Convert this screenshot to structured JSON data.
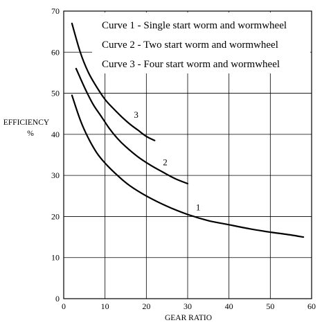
{
  "chart_data": {
    "type": "line",
    "xlabel": "GEAR RATIO",
    "ylabel_line1": "EFFICIENCY",
    "ylabel_line2": "%",
    "xlim": [
      0,
      60
    ],
    "ylim": [
      0,
      70
    ],
    "xticks": [
      0,
      10,
      20,
      30,
      40,
      50,
      60
    ],
    "yticks": [
      0,
      10,
      20,
      30,
      40,
      50,
      60,
      70
    ],
    "grid": true,
    "legend_position": "top-right",
    "legend": [
      "Curve 1 - Single start worm and wormwheel",
      "Curve 2 - Two start worm and wormwheel",
      "Curve 3 - Four start worm and wormwheel"
    ],
    "series": [
      {
        "name": "1",
        "x": [
          2,
          4,
          6,
          8,
          10,
          13,
          16,
          20,
          25,
          30,
          35,
          40,
          45,
          50,
          55,
          58
        ],
        "y": [
          49.5,
          43.5,
          39,
          35.5,
          33,
          30,
          27.5,
          25,
          22.5,
          20.5,
          19,
          18,
          17,
          16.2,
          15.5,
          15
        ]
      },
      {
        "name": "2",
        "x": [
          3,
          5,
          7,
          9,
          11,
          13,
          15,
          18,
          21,
          24,
          27,
          30
        ],
        "y": [
          56,
          51.5,
          47.5,
          44.5,
          41.5,
          39,
          37,
          34.5,
          32.5,
          30.8,
          29.2,
          28
        ]
      },
      {
        "name": "3",
        "x": [
          2,
          4,
          6,
          8,
          10,
          12,
          14,
          16,
          18,
          20,
          22
        ],
        "y": [
          67,
          60,
          55,
          51.5,
          48.5,
          46.3,
          44.3,
          42.5,
          41,
          39.5,
          38.5
        ]
      }
    ],
    "series_labels": [
      {
        "text": "1",
        "x": 32,
        "y": 21.5
      },
      {
        "text": "2",
        "x": 24,
        "y": 32.5
      },
      {
        "text": "3",
        "x": 17,
        "y": 44
      }
    ]
  }
}
